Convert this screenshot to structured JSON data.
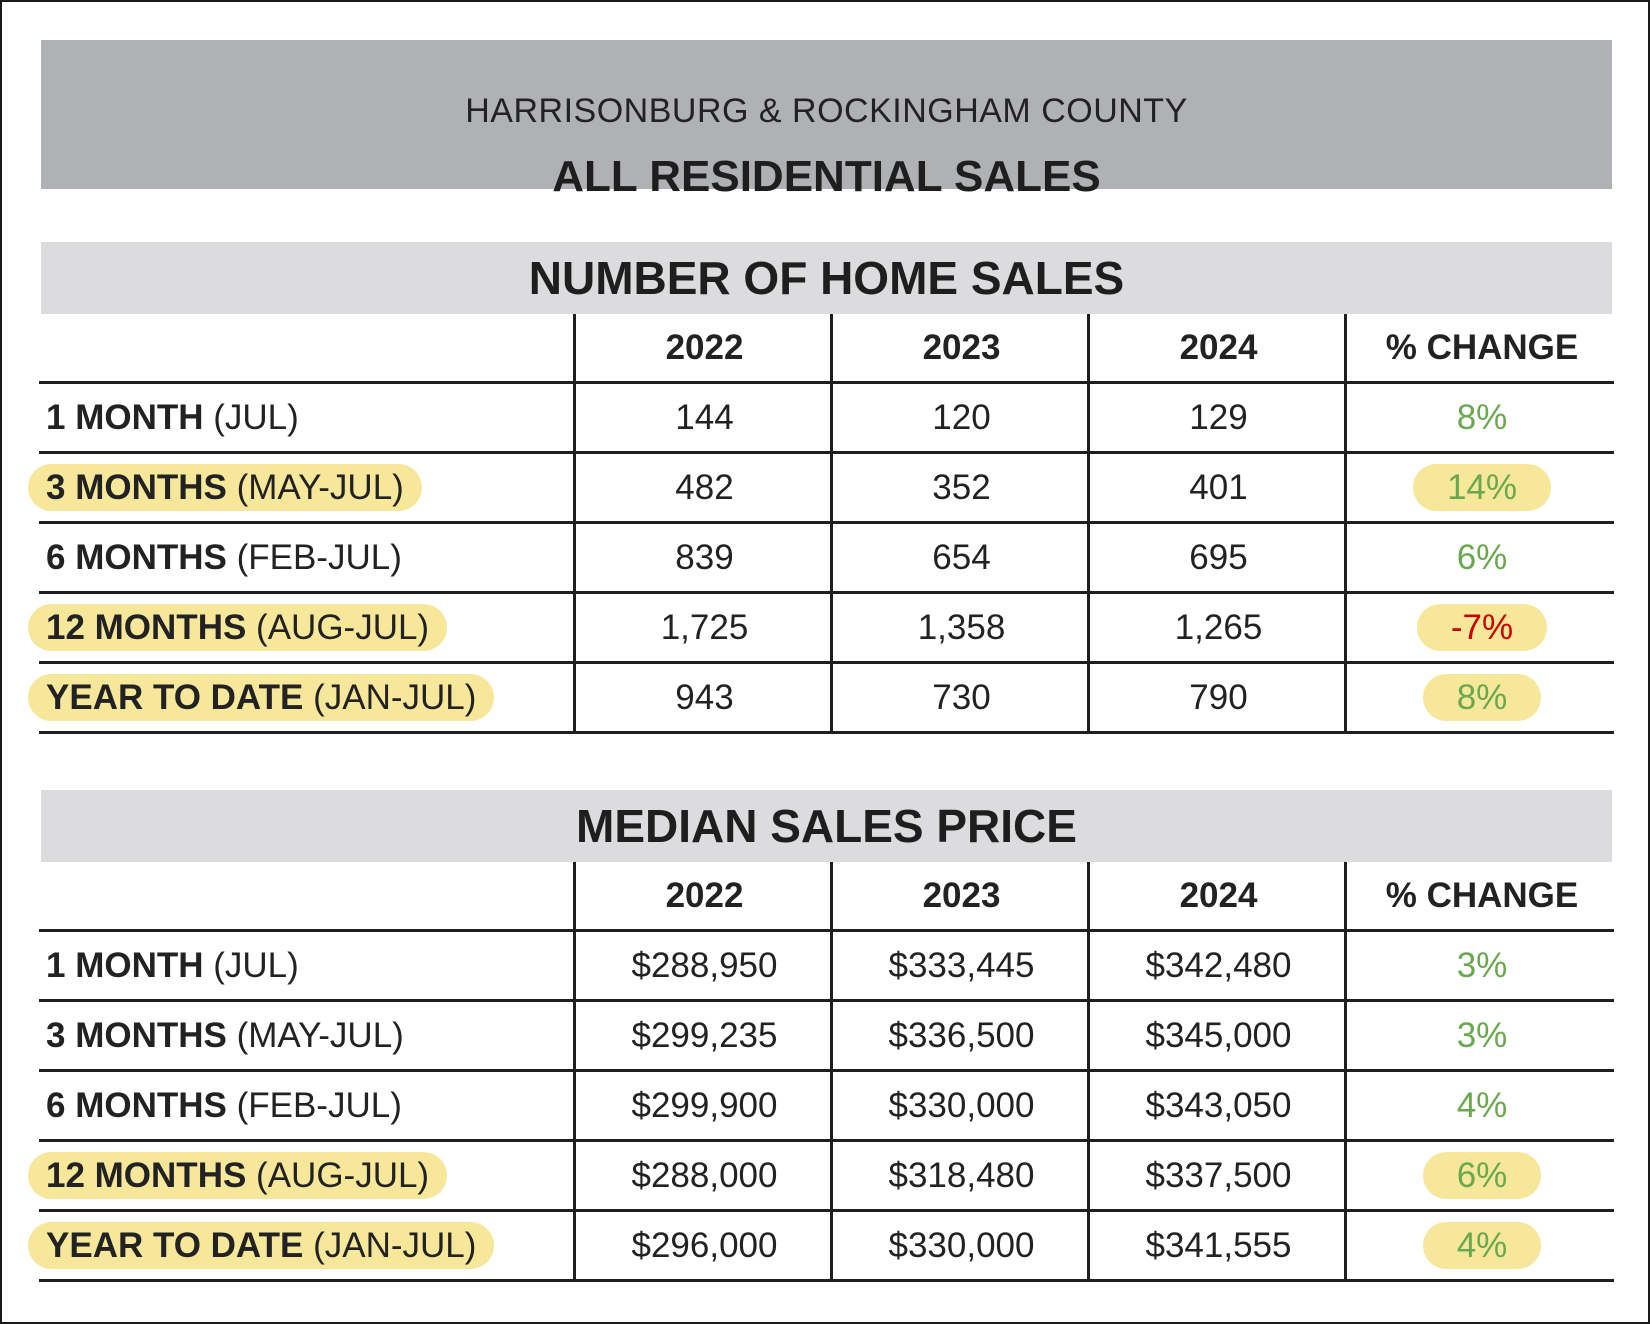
{
  "banner": {
    "subtitle": "HARRISONBURG & ROCKINGHAM COUNTY",
    "title": "ALL RESIDENTIAL SALES"
  },
  "sales": {
    "title": "NUMBER OF HOME SALES",
    "headers": [
      "",
      "2022",
      "2023",
      "2024",
      "% CHANGE"
    ],
    "rows": [
      {
        "label": "1 MONTH",
        "period": " (JUL)",
        "v2022": "144",
        "v2023": "120",
        "v2024": "129",
        "change": "8%"
      },
      {
        "label": "3 MONTHS",
        "period": " (MAY-JUL)",
        "v2022": "482",
        "v2023": "352",
        "v2024": "401",
        "change": "14%"
      },
      {
        "label": "6 MONTHS",
        "period": " (FEB-JUL)",
        "v2022": "839",
        "v2023": "654",
        "v2024": "695",
        "change": "6%"
      },
      {
        "label": "12 MONTHS",
        "period": " (AUG-JUL)",
        "v2022": "1,725",
        "v2023": "1,358",
        "v2024": "1,265",
        "change": "-7%"
      },
      {
        "label": "YEAR TO DATE",
        "period": " (JAN-JUL)",
        "v2022": "943",
        "v2023": "730",
        "v2024": "790",
        "change": "8%"
      }
    ]
  },
  "price": {
    "title": "MEDIAN SALES PRICE",
    "headers": [
      "",
      "2022",
      "2023",
      "2024",
      "% CHANGE"
    ],
    "rows": [
      {
        "label": "1 MONTH",
        "period": " (JUL)",
        "v2022": "$288,950",
        "v2023": "$333,445",
        "v2024": "$342,480",
        "change": "3%"
      },
      {
        "label": "3 MONTHS",
        "period": " (MAY-JUL)",
        "v2022": "$299,235",
        "v2023": "$336,500",
        "v2024": "$345,000",
        "change": "3%"
      },
      {
        "label": "6 MONTHS",
        "period": " (FEB-JUL)",
        "v2022": "$299,900",
        "v2023": "$330,000",
        "v2024": "$343,050",
        "change": "4%"
      },
      {
        "label": "12 MONTHS",
        "period": " (AUG-JUL)",
        "v2022": "$288,000",
        "v2023": "$318,480",
        "v2024": "$337,500",
        "change": "6%"
      },
      {
        "label": "YEAR TO DATE",
        "period": " (JAN-JUL)",
        "v2022": "$296,000",
        "v2023": "$330,000",
        "v2024": "$341,555",
        "change": "4%"
      }
    ]
  },
  "colors": {
    "positive": "#6aa84f",
    "negative": "#cc0000",
    "highlight": "#f7e79b",
    "banner_bg": "#b0b1b4",
    "section_bg": "#dcdcde"
  }
}
